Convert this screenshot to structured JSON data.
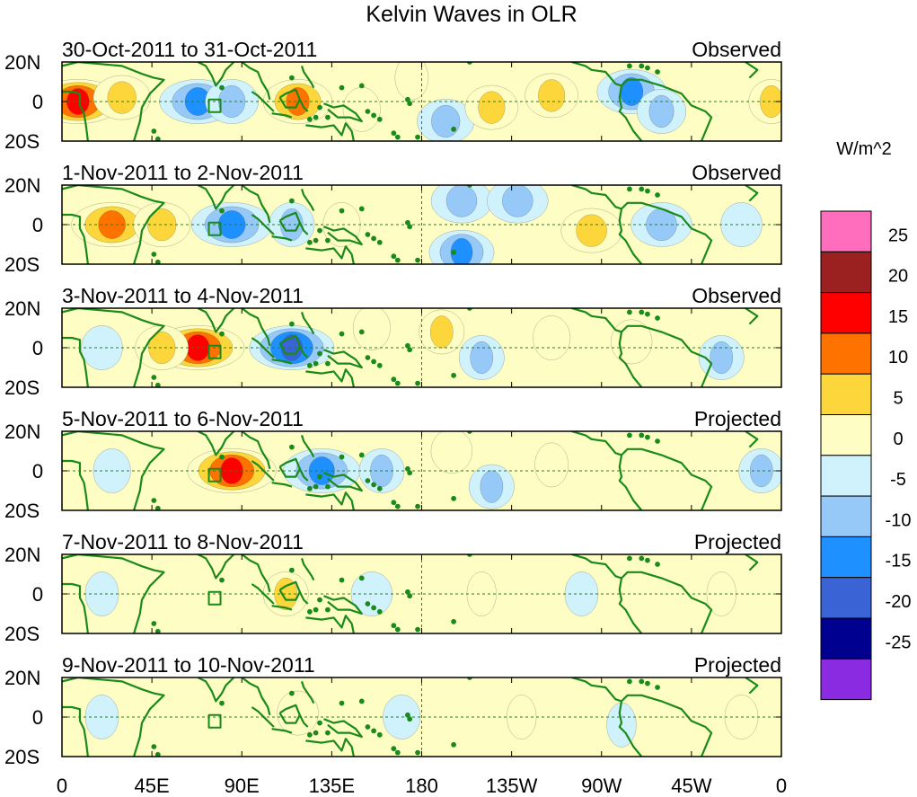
{
  "chart_data": {
    "type": "heatmap",
    "title": "Kelvin Waves in OLR",
    "units": "W/m^2",
    "lon_ticks": [
      "0",
      "45E",
      "90E",
      "135E",
      "180",
      "135W",
      "90W",
      "45W",
      "0"
    ],
    "lat_ticks": [
      "20N",
      "0",
      "20S"
    ],
    "lon_range": [
      0,
      360
    ],
    "lat_range": [
      -20,
      20
    ],
    "colorbar": {
      "labels": [
        "25",
        "20",
        "15",
        "10",
        "5",
        "0",
        "-5",
        "-10",
        "-15",
        "-20",
        "-25"
      ],
      "levels": [
        -30,
        -25,
        -20,
        -15,
        -10,
        -5,
        0,
        5,
        10,
        15,
        20,
        25,
        30
      ],
      "colors": [
        "#8a2be2",
        "#000090",
        "#3a63d6",
        "#1e90ff",
        "#96c8f8",
        "#d0f2fc",
        "#fefdc4",
        "#fdd63c",
        "#fe7200",
        "#fe0000",
        "#9b2020",
        "#ff6ebc"
      ]
    },
    "panels": [
      {
        "period": "30-Oct-2011 to 31-Oct-2011",
        "status": "Observed",
        "features": [
          {
            "lon": 8,
            "lat": 0,
            "value": 17
          },
          {
            "lon": 30,
            "lat": 2,
            "value": 9
          },
          {
            "lon": 68,
            "lat": 0,
            "value": -14
          },
          {
            "lon": 85,
            "lat": 0,
            "value": -8
          },
          {
            "lon": 118,
            "lat": 0,
            "value": 12
          },
          {
            "lon": 150,
            "lat": -4,
            "value": 4
          },
          {
            "lon": 175,
            "lat": 12,
            "value": 3
          },
          {
            "lon": 192,
            "lat": -10,
            "value": -9
          },
          {
            "lon": 215,
            "lat": -3,
            "value": 8
          },
          {
            "lon": 245,
            "lat": 3,
            "value": 8
          },
          {
            "lon": 285,
            "lat": 5,
            "value": -12
          },
          {
            "lon": 300,
            "lat": -5,
            "value": -7
          },
          {
            "lon": 355,
            "lat": 0,
            "value": 6
          }
        ]
      },
      {
        "period": "1-Nov-2011 to 2-Nov-2011",
        "status": "Observed",
        "features": [
          {
            "lon": 25,
            "lat": 0,
            "value": 15
          },
          {
            "lon": 50,
            "lat": 0,
            "value": 9
          },
          {
            "lon": 85,
            "lat": 0,
            "value": -15
          },
          {
            "lon": 115,
            "lat": 0,
            "value": -6
          },
          {
            "lon": 140,
            "lat": 0,
            "value": 4
          },
          {
            "lon": 200,
            "lat": 12,
            "value": -10
          },
          {
            "lon": 200,
            "lat": -14,
            "value": -11
          },
          {
            "lon": 228,
            "lat": 12,
            "value": -10
          },
          {
            "lon": 265,
            "lat": -3,
            "value": 10
          },
          {
            "lon": 300,
            "lat": 0,
            "value": -10
          },
          {
            "lon": 340,
            "lat": 0,
            "value": -5
          }
        ]
      },
      {
        "period": "3-Nov-2011 to 4-Nov-2011",
        "status": "Observed",
        "features": [
          {
            "lon": 20,
            "lat": 0,
            "value": -5
          },
          {
            "lon": 68,
            "lat": 0,
            "value": 18
          },
          {
            "lon": 50,
            "lat": 0,
            "value": 8
          },
          {
            "lon": 115,
            "lat": 0,
            "value": -16
          },
          {
            "lon": 155,
            "lat": 10,
            "value": 4
          },
          {
            "lon": 190,
            "lat": 8,
            "value": 6
          },
          {
            "lon": 210,
            "lat": -5,
            "value": -6
          },
          {
            "lon": 245,
            "lat": 5,
            "value": 4
          },
          {
            "lon": 285,
            "lat": 3,
            "value": 5
          },
          {
            "lon": 330,
            "lat": -5,
            "value": -6
          }
        ]
      },
      {
        "period": "5-Nov-2011 to 6-Nov-2011",
        "status": "Projected",
        "features": [
          {
            "lon": 25,
            "lat": 0,
            "value": -4
          },
          {
            "lon": 85,
            "lat": 0,
            "value": 17
          },
          {
            "lon": 130,
            "lat": 0,
            "value": -14
          },
          {
            "lon": 160,
            "lat": 0,
            "value": -6
          },
          {
            "lon": 195,
            "lat": 10,
            "value": 5
          },
          {
            "lon": 215,
            "lat": -8,
            "value": -6
          },
          {
            "lon": 245,
            "lat": 3,
            "value": 3
          },
          {
            "lon": 350,
            "lat": 0,
            "value": -6
          }
        ]
      },
      {
        "period": "7-Nov-2011 to 8-Nov-2011",
        "status": "Projected",
        "features": [
          {
            "lon": 20,
            "lat": 0,
            "value": -3
          },
          {
            "lon": 112,
            "lat": 0,
            "value": 6
          },
          {
            "lon": 155,
            "lat": 0,
            "value": -5
          },
          {
            "lon": 210,
            "lat": 0,
            "value": 2
          },
          {
            "lon": 260,
            "lat": 0,
            "value": -3
          },
          {
            "lon": 330,
            "lat": 0,
            "value": 2
          }
        ]
      },
      {
        "period": "9-Nov-2011 to 10-Nov-2011",
        "status": "Projected",
        "features": [
          {
            "lon": 20,
            "lat": 0,
            "value": -3
          },
          {
            "lon": 118,
            "lat": 2,
            "value": 5
          },
          {
            "lon": 170,
            "lat": 0,
            "value": -4
          },
          {
            "lon": 230,
            "lat": 0,
            "value": 2
          },
          {
            "lon": 280,
            "lat": -4,
            "value": -2
          },
          {
            "lon": 340,
            "lat": 0,
            "value": 3
          }
        ]
      }
    ]
  }
}
